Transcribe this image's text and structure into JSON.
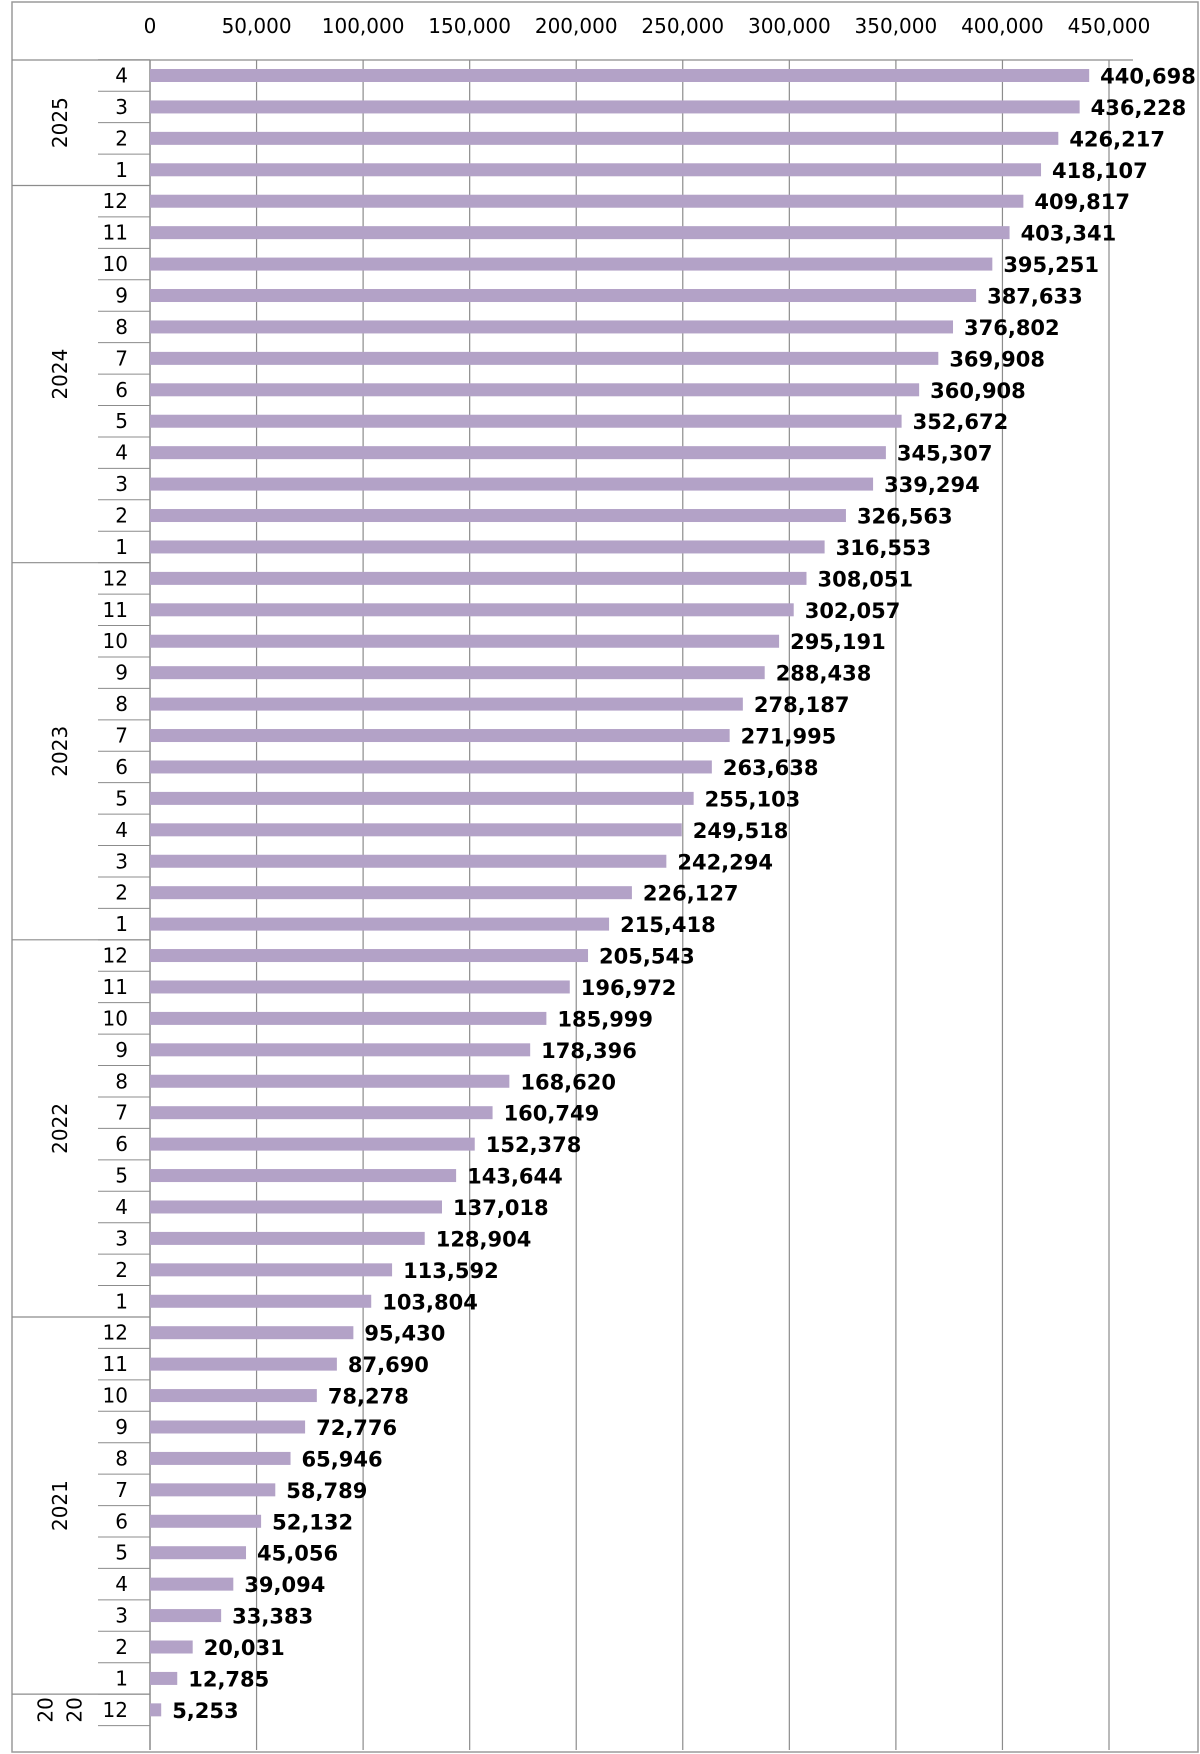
{
  "chart_data": {
    "type": "bar",
    "orientation": "horizontal",
    "title": "",
    "xlabel": "",
    "ylabel": "",
    "xlim": [
      0,
      450000
    ],
    "x_ticks": [
      "0",
      "50,000",
      "100,000",
      "150,000",
      "200,000",
      "250,000",
      "300,000",
      "350,000",
      "400,000",
      "450,000"
    ],
    "x_tick_values": [
      0,
      50000,
      100000,
      150000,
      200000,
      250000,
      300000,
      350000,
      400000,
      450000
    ],
    "grid": "vertical",
    "bar_color": "#b3a2c7",
    "axis_position": "top",
    "groups": [
      {
        "year": "2025",
        "year_lines": [
          "2025"
        ],
        "months": [
          "4",
          "3",
          "2",
          "1"
        ],
        "values": [
          440698,
          436228,
          426217,
          418107
        ],
        "labels": [
          "440,698",
          "436,228",
          "426,217",
          "418,107"
        ]
      },
      {
        "year": "2024",
        "year_lines": [
          "2024"
        ],
        "months": [
          "12",
          "11",
          "10",
          "9",
          "8",
          "7",
          "6",
          "5",
          "4",
          "3",
          "2",
          "1"
        ],
        "values": [
          409817,
          403341,
          395251,
          387633,
          376802,
          369908,
          360908,
          352672,
          345307,
          339294,
          326563,
          316553
        ],
        "labels": [
          "409,817",
          "403,341",
          "395,251",
          "387,633",
          "376,802",
          "369,908",
          "360,908",
          "352,672",
          "345,307",
          "339,294",
          "326,563",
          "316,553"
        ]
      },
      {
        "year": "2023",
        "year_lines": [
          "2023"
        ],
        "months": [
          "12",
          "11",
          "10",
          "9",
          "8",
          "7",
          "6",
          "5",
          "4",
          "3",
          "2",
          "1"
        ],
        "values": [
          308051,
          302057,
          295191,
          288438,
          278187,
          271995,
          263638,
          255103,
          249518,
          242294,
          226127,
          215418
        ],
        "labels": [
          "308,051",
          "302,057",
          "295,191",
          "288,438",
          "278,187",
          "271,995",
          "263,638",
          "255,103",
          "249,518",
          "242,294",
          "226,127",
          "215,418"
        ]
      },
      {
        "year": "2022",
        "year_lines": [
          "2022"
        ],
        "months": [
          "12",
          "11",
          "10",
          "9",
          "8",
          "7",
          "6",
          "5",
          "4",
          "3",
          "2",
          "1"
        ],
        "values": [
          205543,
          196972,
          185999,
          178396,
          168620,
          160749,
          152378,
          143644,
          137018,
          128904,
          113592,
          103804
        ],
        "labels": [
          "205,543",
          "196,972",
          "185,999",
          "178,396",
          "168,620",
          "160,749",
          "152,378",
          "143,644",
          "137,018",
          "128,904",
          "113,592",
          "103,804"
        ]
      },
      {
        "year": "2021",
        "year_lines": [
          "2021"
        ],
        "months": [
          "12",
          "11",
          "10",
          "9",
          "8",
          "7",
          "6",
          "5",
          "4",
          "3",
          "2",
          "1"
        ],
        "values": [
          95430,
          87690,
          78278,
          72776,
          65946,
          58789,
          52132,
          45056,
          39094,
          33383,
          20031,
          12785
        ],
        "labels": [
          "95,430",
          "87,690",
          "78,278",
          "72,776",
          "65,946",
          "58,789",
          "52,132",
          "45,056",
          "39,094",
          "33,383",
          "20,031",
          "12,785"
        ]
      },
      {
        "year": "2020",
        "year_lines": [
          "20",
          "20"
        ],
        "months": [
          "12"
        ],
        "values": [
          5253
        ],
        "labels": [
          "5,253"
        ]
      }
    ]
  }
}
